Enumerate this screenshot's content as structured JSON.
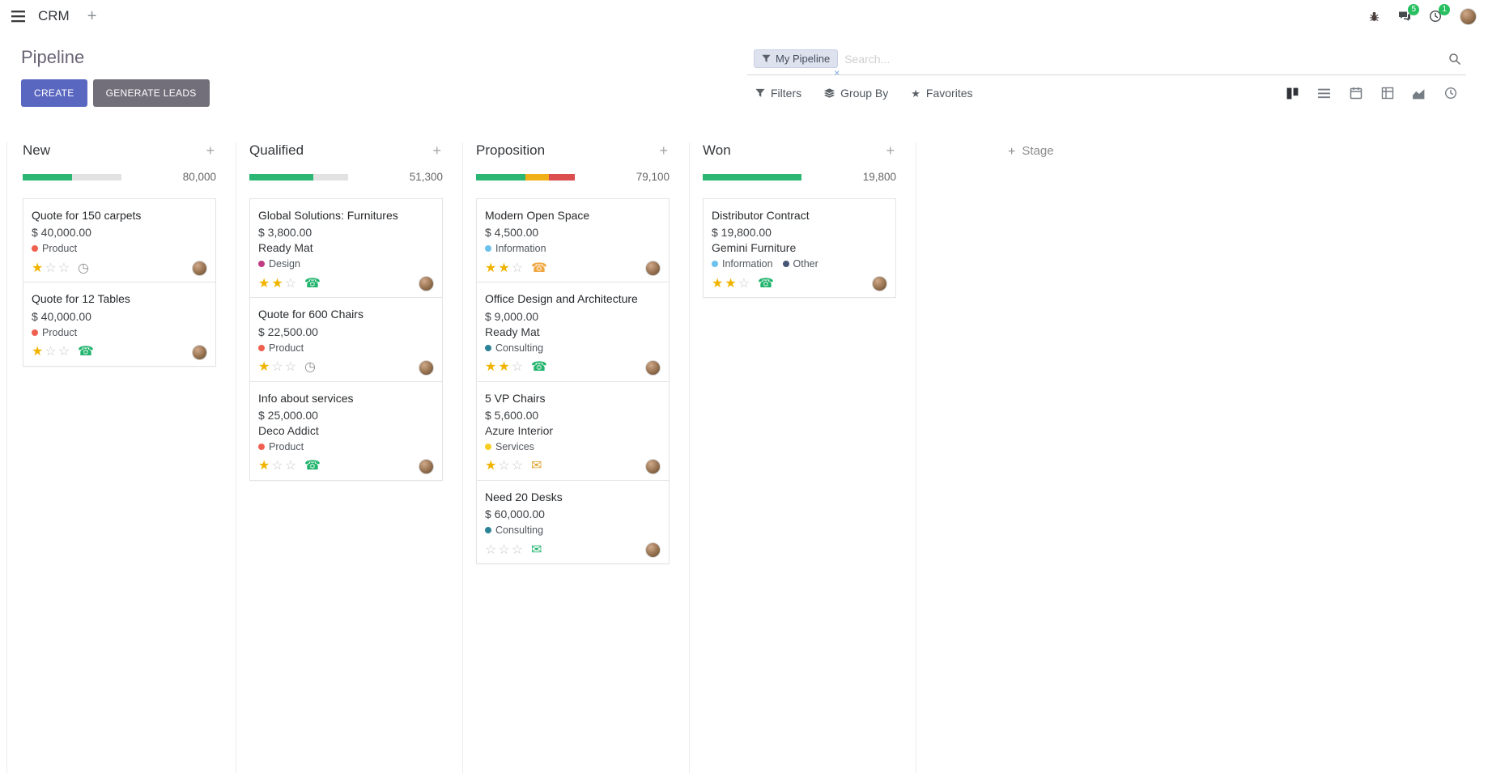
{
  "navbar": {
    "app_name": "CRM",
    "messages_badge": "5",
    "activities_badge": "1"
  },
  "control_panel": {
    "title": "Pipeline",
    "create_label": "CREATE",
    "generate_leads_label": "GENERATE LEADS",
    "filters_label": "Filters",
    "group_by_label": "Group By",
    "favorites_label": "Favorites",
    "search": {
      "facet_label": "My Pipeline",
      "placeholder": "Search..."
    }
  },
  "kanban": {
    "add_stage_label": "Stage",
    "columns": [
      {
        "name": "New",
        "total": "80,000",
        "progress": [
          {
            "color": "#2bb673",
            "pct": 50
          }
        ],
        "cards": [
          {
            "title": "Quote for 150 carpets",
            "amount": "$ 40,000.00",
            "tags": [
              {
                "label": "Product",
                "color": "#f06050"
              }
            ],
            "stars": 1,
            "activity": {
              "type": "clock",
              "color": "#8f8f8f"
            }
          },
          {
            "title": "Quote for 12 Tables",
            "amount": "$ 40,000.00",
            "tags": [
              {
                "label": "Product",
                "color": "#f06050"
              }
            ],
            "stars": 1,
            "activity": {
              "type": "phone",
              "color": "#1fb36b"
            }
          }
        ]
      },
      {
        "name": "Qualified",
        "total": "51,300",
        "progress": [
          {
            "color": "#2bb673",
            "pct": 65
          }
        ],
        "cards": [
          {
            "title": "Global Solutions: Furnitures",
            "amount": "$ 3,800.00",
            "partner": "Ready Mat",
            "tags": [
              {
                "label": "Design",
                "color": "#c13d83"
              }
            ],
            "stars": 2,
            "activity": {
              "type": "phone",
              "color": "#1fb36b"
            }
          },
          {
            "title": "Quote for 600 Chairs",
            "amount": "$ 22,500.00",
            "tags": [
              {
                "label": "Product",
                "color": "#f06050"
              }
            ],
            "stars": 1,
            "activity": {
              "type": "clock",
              "color": "#8f8f8f"
            }
          },
          {
            "title": "Info about services",
            "amount": "$ 25,000.00",
            "partner": "Deco Addict",
            "tags": [
              {
                "label": "Product",
                "color": "#f06050"
              }
            ],
            "stars": 1,
            "activity": {
              "type": "phone",
              "color": "#1fb36b"
            }
          }
        ]
      },
      {
        "name": "Proposition",
        "total": "79,100",
        "progress": [
          {
            "color": "#2bb673",
            "pct": 50
          },
          {
            "color": "#efb018",
            "pct": 24
          },
          {
            "color": "#dc4d4d",
            "pct": 26
          }
        ],
        "cards": [
          {
            "title": "Modern Open Space",
            "amount": "$ 4,500.00",
            "tags": [
              {
                "label": "Information",
                "color": "#6cc1ed"
              }
            ],
            "stars": 2,
            "activity": {
              "type": "phone",
              "color": "#f0a742"
            }
          },
          {
            "title": "Office Design and Architecture",
            "amount": "$ 9,000.00",
            "partner": "Ready Mat",
            "tags": [
              {
                "label": "Consulting",
                "color": "#2c8397"
              }
            ],
            "stars": 2,
            "activity": {
              "type": "phone",
              "color": "#1fb36b"
            }
          },
          {
            "title": "5 VP Chairs",
            "amount": "$ 5,600.00",
            "partner": "Azure Interior",
            "tags": [
              {
                "label": "Services",
                "color": "#f7cd1f"
              }
            ],
            "stars": 1,
            "activity": {
              "type": "envelope",
              "color": "#dfa32e"
            }
          },
          {
            "title": "Need 20 Desks",
            "amount": "$ 60,000.00",
            "tags": [
              {
                "label": "Consulting",
                "color": "#2c8397"
              }
            ],
            "stars": 0,
            "activity": {
              "type": "envelope",
              "color": "#1fb36b"
            }
          }
        ]
      },
      {
        "name": "Won",
        "total": "19,800",
        "progress": [
          {
            "color": "#2bb673",
            "pct": 100
          }
        ],
        "cards": [
          {
            "title": "Distributor Contract",
            "amount": "$ 19,800.00",
            "partner": "Gemini Furniture",
            "tags": [
              {
                "label": "Information",
                "color": "#6cc1ed"
              },
              {
                "label": "Other",
                "color": "#475577"
              }
            ],
            "stars": 2,
            "activity": {
              "type": "phone",
              "color": "#1fb36b"
            }
          }
        ]
      }
    ]
  }
}
